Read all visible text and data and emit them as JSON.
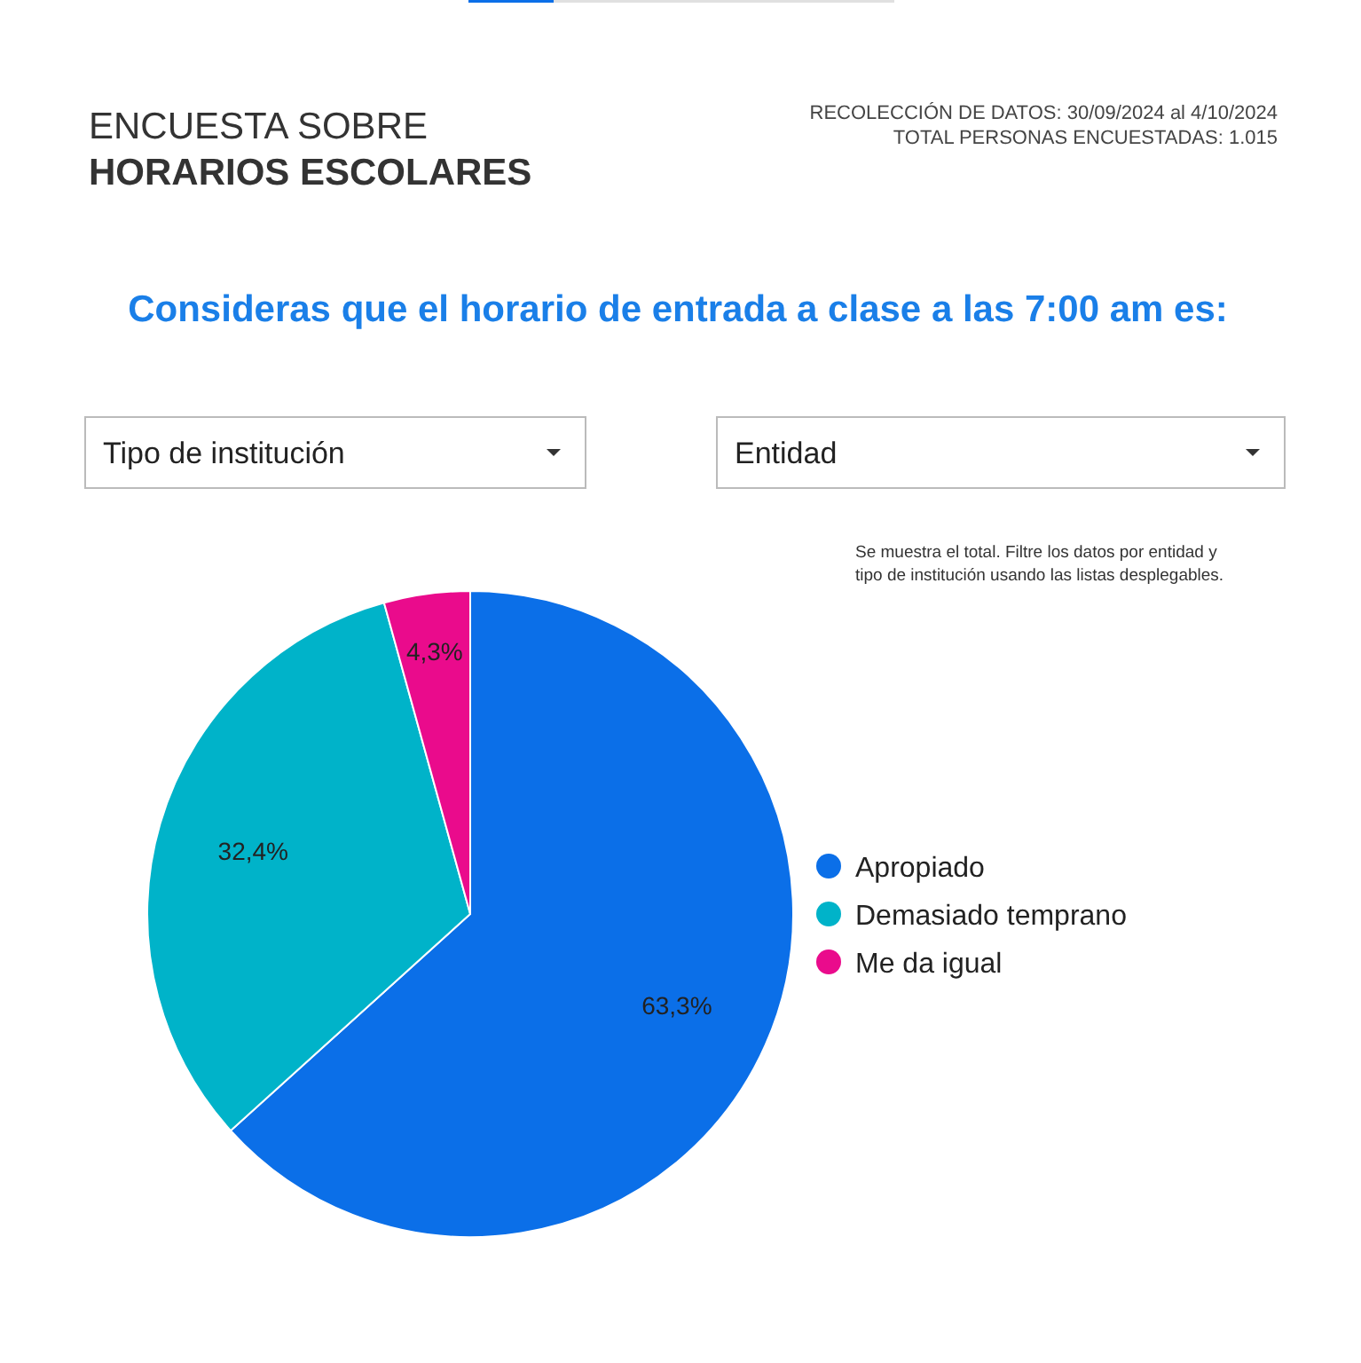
{
  "chart_data": {
    "type": "pie",
    "title": "ENCUESTA SOBRE",
    "subtitle": "HORARIOS ESCOLARES",
    "annotations": [
      "RECOLECCIÓN DE DATOS: 30/09/2024 al 4/10/2024",
      "TOTAL PERSONAS ENCUESTADAS: 1.015",
      "Consideras que el horario de entrada a clase a las 7:00 am es:",
      "Tipo de institución",
      "Entidad",
      "Se muestra el total. Filtre los datos por entidad y",
      "tipo de institución usando las listas desplegables."
    ],
    "categories": [
      "Apropiado",
      "Demasiado temprano",
      "Me da igual"
    ],
    "values": [
      63.3,
      32.4,
      4.3
    ],
    "colors": [
      "#0b6fe8",
      "#00b3c9",
      "#ea0b8c"
    ],
    "value_labels": [
      "63,3%",
      "32,4%",
      "4,3%"
    ],
    "legend": "right"
  }
}
